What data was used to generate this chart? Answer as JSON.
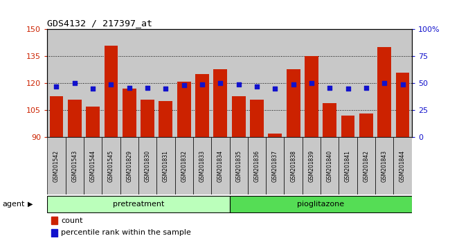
{
  "title": "GDS4132 / 217397_at",
  "samples": [
    "GSM201542",
    "GSM201543",
    "GSM201544",
    "GSM201545",
    "GSM201829",
    "GSM201830",
    "GSM201831",
    "GSM201832",
    "GSM201833",
    "GSM201834",
    "GSM201835",
    "GSM201836",
    "GSM201837",
    "GSM201838",
    "GSM201839",
    "GSM201840",
    "GSM201841",
    "GSM201842",
    "GSM201843",
    "GSM201844"
  ],
  "counts": [
    113,
    111,
    107,
    141,
    117,
    111,
    110,
    121,
    125,
    128,
    113,
    111,
    92,
    128,
    135,
    109,
    102,
    103,
    140,
    126
  ],
  "percentiles": [
    47,
    50,
    45,
    49,
    46,
    46,
    45,
    48,
    49,
    50,
    49,
    47,
    45,
    49,
    50,
    46,
    45,
    46,
    50,
    49
  ],
  "pretreatment_count": 10,
  "pioglitazone_count": 10,
  "ylim_left": [
    90,
    150
  ],
  "ylim_right": [
    0,
    100
  ],
  "yticks_left": [
    90,
    105,
    120,
    135,
    150
  ],
  "yticks_right": [
    0,
    25,
    50,
    75,
    100
  ],
  "bar_color": "#cc2200",
  "dot_color": "#1111cc",
  "pretreatment_color": "#bbffbb",
  "pioglitazone_color": "#55dd55",
  "grid_color": "#000000",
  "cell_bg_color": "#c8c8c8",
  "plot_bg_color": "#ffffff",
  "ylabel_left_color": "#cc2200",
  "ylabel_right_color": "#1111cc",
  "legend_count_label": "count",
  "legend_pct_label": "percentile rank within the sample",
  "agent_label": "agent",
  "pretreatment_label": "pretreatment",
  "pioglitazone_label": "pioglitazone"
}
